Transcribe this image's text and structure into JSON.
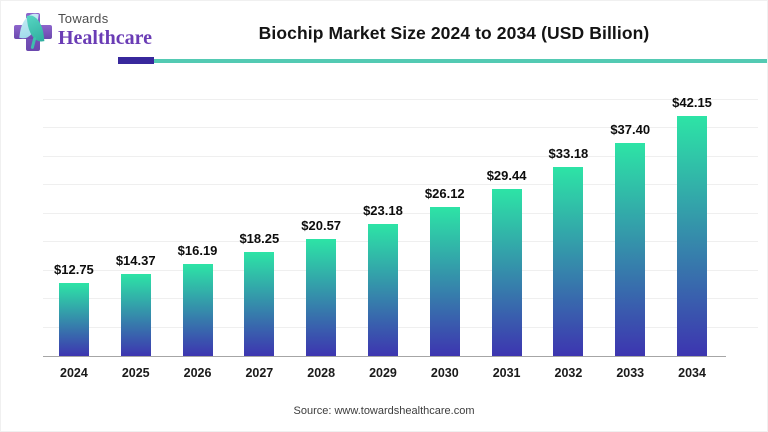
{
  "brand": {
    "name_top": "Towards",
    "name_bottom": "Healthcare"
  },
  "header": {
    "title": "Biochip Market Size 2024 to 2034 (USD Billion)"
  },
  "footer": {
    "source": "Source: www.towardshealthcare.com"
  },
  "colors": {
    "bar_gradient_top": "#2de4a6",
    "bar_gradient_bottom": "#3d35b0",
    "accent_purple": "#38289c",
    "accent_teal": "#53cab3",
    "logo_purple": "#6a3cb5",
    "gridline": "#efefef",
    "axis_line": "#a6a6a6"
  },
  "chart_data": {
    "type": "bar",
    "title": "Biochip Market Size 2024 to 2034 (USD Billion)",
    "categories": [
      "2024",
      "2025",
      "2026",
      "2027",
      "2028",
      "2029",
      "2030",
      "2031",
      "2032",
      "2033",
      "2034"
    ],
    "values": [
      12.75,
      14.37,
      16.19,
      18.25,
      20.57,
      23.18,
      26.12,
      29.44,
      33.18,
      37.4,
      42.15
    ],
    "labels": [
      "$12.75",
      "$14.37",
      "$16.19",
      "$18.25",
      "$20.57",
      "$23.18",
      "$26.12",
      "$29.44",
      "$33.18",
      "$37.40",
      "$42.15"
    ],
    "xlabel": "",
    "ylabel": "",
    "ylim": [
      0,
      45
    ],
    "gridline_step": 5,
    "grid": "horizontal",
    "legend": "none",
    "source": "www.towardshealthcare.com"
  }
}
